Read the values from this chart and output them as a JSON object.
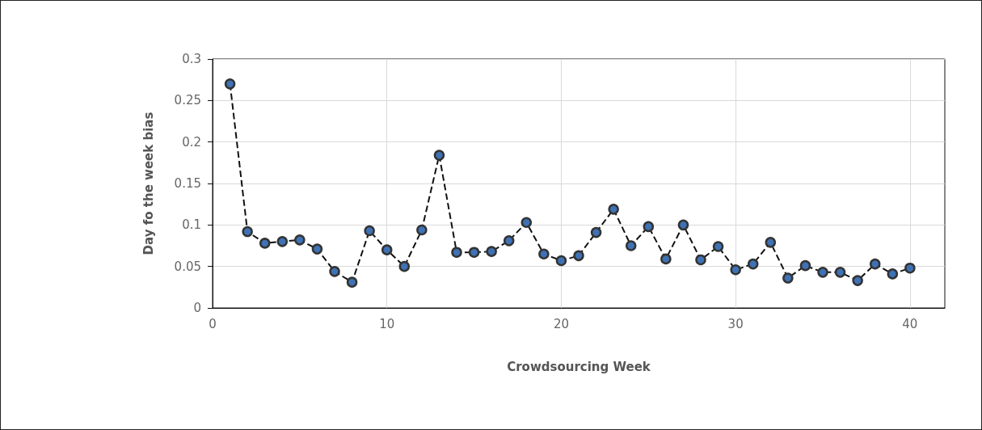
{
  "chart_data": {
    "type": "line",
    "xlabel": "Crowdsourcing Week",
    "ylabel": "Day fo the week bias",
    "x": [
      1,
      2,
      3,
      4,
      5,
      6,
      7,
      8,
      9,
      10,
      11,
      12,
      13,
      14,
      15,
      16,
      17,
      18,
      19,
      20,
      21,
      22,
      23,
      24,
      25,
      26,
      27,
      28,
      29,
      30,
      31,
      32,
      33,
      34,
      35,
      36,
      37,
      38,
      39,
      40
    ],
    "series": [
      {
        "color": "#3f72b5",
        "values": [
          0.27,
          0.092,
          0.078,
          0.08,
          0.082,
          0.071,
          0.044,
          0.031,
          0.093,
          0.07,
          0.05,
          0.094,
          0.184,
          0.067,
          0.067,
          0.068,
          0.081,
          0.103,
          0.065,
          0.057,
          0.063,
          0.091,
          0.119,
          0.075,
          0.098,
          0.059,
          0.1,
          0.058,
          0.074,
          0.046,
          0.053,
          0.079,
          0.036,
          0.051,
          0.043,
          0.043,
          0.033,
          0.053,
          0.041,
          0.048
        ]
      }
    ],
    "xlim": [
      0,
      42
    ],
    "xticks": [
      0,
      10,
      20,
      30,
      40
    ],
    "ylim": [
      0,
      0.3
    ],
    "yticks": [
      0,
      0.05,
      0.1,
      0.15,
      0.2,
      0.25,
      0.3
    ],
    "grid": true,
    "marker": "circle",
    "line_style": "dashed"
  }
}
